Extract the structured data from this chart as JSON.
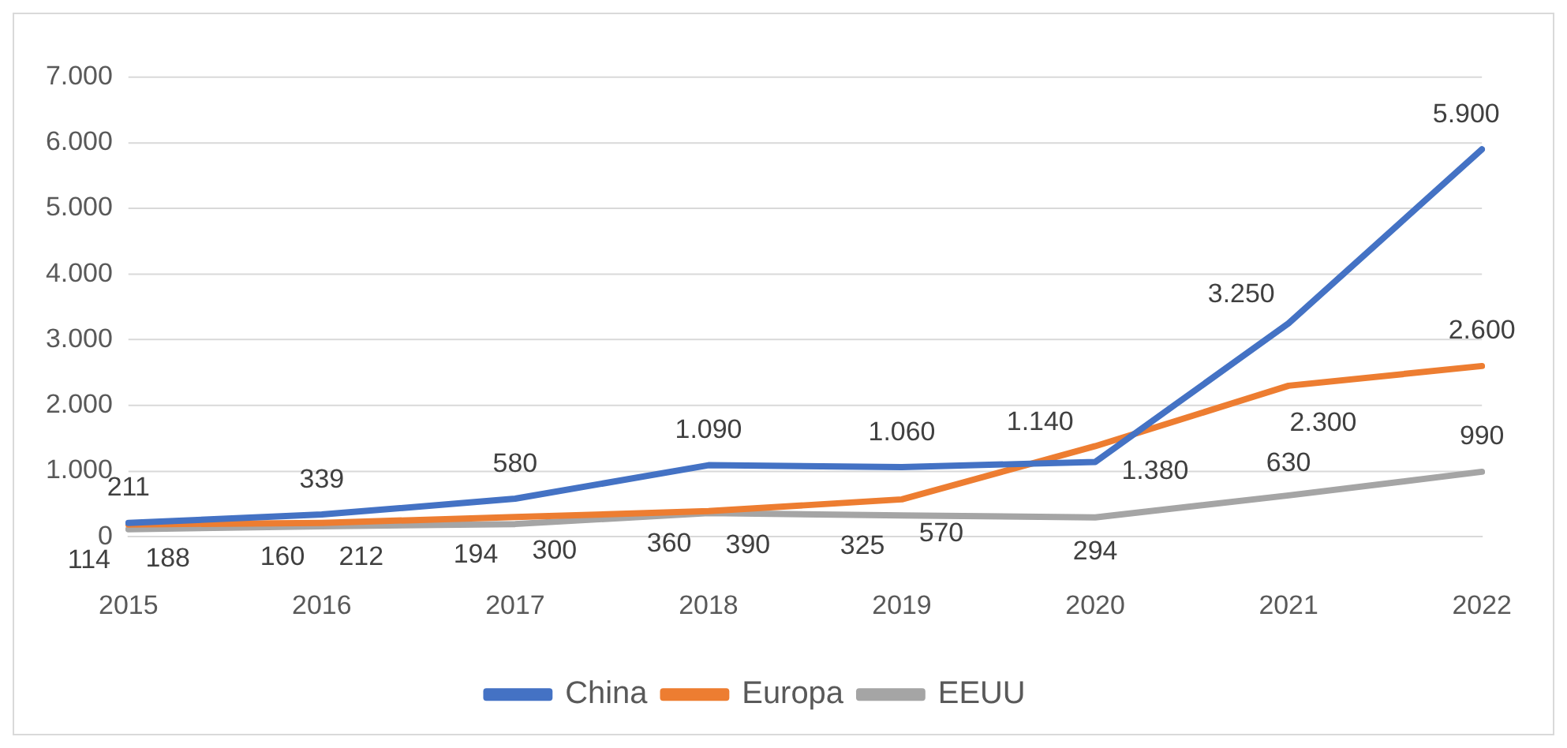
{
  "chart_data": {
    "type": "line",
    "categories": [
      "2015",
      "2016",
      "2017",
      "2018",
      "2019",
      "2020",
      "2021",
      "2022"
    ],
    "series": [
      {
        "name": "China",
        "color": "#4472c4",
        "values": [
          211,
          339,
          580,
          1090,
          1060,
          1140,
          3250,
          5900
        ],
        "value_labels": [
          "211",
          "339",
          "580",
          "1.090",
          "1.060",
          "1.140",
          "3.250",
          "5.900"
        ]
      },
      {
        "name": "Europa",
        "color": "#ed7d31",
        "values": [
          188,
          212,
          300,
          390,
          570,
          1380,
          2300,
          2600
        ],
        "value_labels": [
          "188",
          "212",
          "300",
          "390",
          "570",
          "1.380",
          "2.300",
          "2.600"
        ]
      },
      {
        "name": "EEUU",
        "color": "#a5a5a5",
        "values": [
          114,
          160,
          194,
          360,
          325,
          294,
          630,
          990
        ],
        "value_labels": [
          "114",
          "160",
          "194",
          "360",
          "325",
          "294",
          "630",
          "990"
        ]
      }
    ],
    "ylim": [
      0,
      7000
    ],
    "yticks": [
      {
        "value": 0,
        "label": "0"
      },
      {
        "value": 1000,
        "label": "1.000"
      },
      {
        "value": 2000,
        "label": "2.000"
      },
      {
        "value": 3000,
        "label": "3.000"
      },
      {
        "value": 4000,
        "label": "4.000"
      },
      {
        "value": 5000,
        "label": "5.000"
      },
      {
        "value": 6000,
        "label": "6.000"
      },
      {
        "value": 7000,
        "label": "7.000"
      }
    ],
    "grid": "y",
    "legend": "bottom",
    "marker": "none",
    "line_style": "solid"
  }
}
